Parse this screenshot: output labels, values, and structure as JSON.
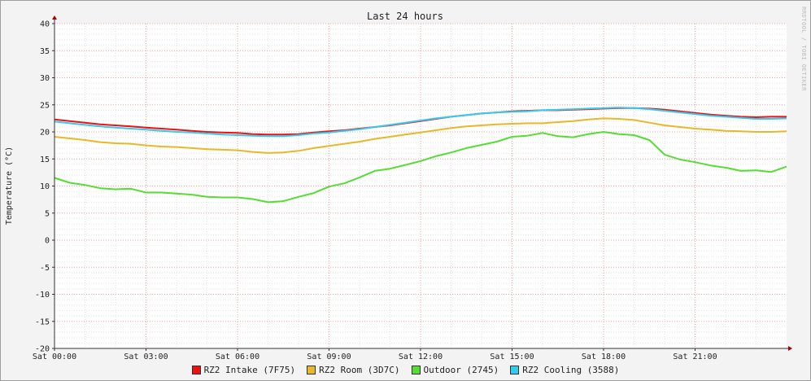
{
  "chart_data": {
    "type": "line",
    "title": "Last 24 hours",
    "ylabel": "Temperature (°C)",
    "xlabel": "",
    "watermark": "RRDTOOL / TOBI OETIKER",
    "ylim": [
      -20,
      40
    ],
    "xlim": [
      0,
      24
    ],
    "yticks": [
      40,
      35,
      30,
      25,
      20,
      15,
      10,
      5,
      0,
      -5,
      -10,
      -15,
      -20
    ],
    "xticks": [
      {
        "x": 0,
        "label": "Sat 00:00"
      },
      {
        "x": 3,
        "label": "Sat 03:00"
      },
      {
        "x": 6,
        "label": "Sat 06:00"
      },
      {
        "x": 9,
        "label": "Sat 09:00"
      },
      {
        "x": 12,
        "label": "Sat 12:00"
      },
      {
        "x": 15,
        "label": "Sat 15:00"
      },
      {
        "x": 18,
        "label": "Sat 18:00"
      },
      {
        "x": 21,
        "label": "Sat 21:00"
      }
    ],
    "grid": true,
    "legend_position": "bottom",
    "x": [
      0,
      0.5,
      1,
      1.5,
      2,
      2.5,
      3,
      3.5,
      4,
      4.5,
      5,
      5.5,
      6,
      6.5,
      7,
      7.5,
      8,
      8.5,
      9,
      9.5,
      10,
      10.5,
      11,
      11.5,
      12,
      12.5,
      13,
      13.5,
      14,
      14.5,
      15,
      15.5,
      16,
      16.5,
      17,
      17.5,
      18,
      18.5,
      19,
      19.5,
      20,
      20.5,
      21,
      21.5,
      22,
      22.5,
      23,
      23.5,
      24
    ],
    "series": [
      {
        "name": "RZ2 Intake (7F75)",
        "color": "#ee1111",
        "values": [
          22.3,
          22.0,
          21.7,
          21.4,
          21.2,
          21.0,
          20.8,
          20.6,
          20.4,
          20.2,
          20.0,
          19.9,
          19.8,
          19.6,
          19.5,
          19.5,
          19.6,
          19.9,
          20.1,
          20.3,
          20.6,
          20.9,
          21.2,
          21.6,
          22.0,
          22.4,
          22.8,
          23.1,
          23.4,
          23.6,
          23.8,
          23.9,
          24.0,
          24.0,
          24.1,
          24.2,
          24.3,
          24.4,
          24.4,
          24.3,
          24.1,
          23.8,
          23.5,
          23.2,
          23.0,
          22.8,
          22.7,
          22.8,
          22.8
        ]
      },
      {
        "name": "RZ2 Room (3D7C)",
        "color": "#e6b82a",
        "values": [
          19.1,
          18.8,
          18.5,
          18.1,
          17.9,
          17.8,
          17.5,
          17.3,
          17.2,
          17.0,
          16.8,
          16.7,
          16.6,
          16.3,
          16.1,
          16.2,
          16.5,
          17.0,
          17.4,
          17.8,
          18.2,
          18.7,
          19.1,
          19.5,
          19.9,
          20.3,
          20.7,
          21.0,
          21.2,
          21.4,
          21.5,
          21.6,
          21.6,
          21.8,
          22.0,
          22.3,
          22.5,
          22.4,
          22.2,
          21.7,
          21.2,
          20.9,
          20.6,
          20.4,
          20.2,
          20.1,
          20.0,
          20.0,
          20.1
        ]
      },
      {
        "name": "Outdoor (2745)",
        "color": "#55dd33",
        "values": [
          11.5,
          10.6,
          10.2,
          9.6,
          9.4,
          9.5,
          8.8,
          8.8,
          8.6,
          8.4,
          8.0,
          7.9,
          7.9,
          7.6,
          7.0,
          7.2,
          8.0,
          8.7,
          9.9,
          10.5,
          11.6,
          12.8,
          13.2,
          13.9,
          14.6,
          15.5,
          16.2,
          17.0,
          17.6,
          18.2,
          19.1,
          19.3,
          19.8,
          19.2,
          19.0,
          19.6,
          20.0,
          19.6,
          19.4,
          18.5,
          15.8,
          14.9,
          14.4,
          13.8,
          13.4,
          12.8,
          12.9,
          12.6,
          13.6
        ]
      },
      {
        "name": "RZ2 Cooling (3588)",
        "color": "#33ccee",
        "values": [
          21.9,
          21.6,
          21.3,
          21.0,
          20.8,
          20.6,
          20.4,
          20.2,
          20.0,
          19.9,
          19.7,
          19.5,
          19.4,
          19.3,
          19.2,
          19.2,
          19.4,
          19.7,
          19.9,
          20.2,
          20.5,
          20.9,
          21.3,
          21.7,
          22.1,
          22.5,
          22.8,
          23.1,
          23.4,
          23.6,
          23.7,
          23.8,
          24.0,
          24.1,
          24.2,
          24.3,
          24.4,
          24.5,
          24.4,
          24.2,
          23.9,
          23.6,
          23.3,
          23.0,
          22.8,
          22.6,
          22.4,
          22.4,
          22.5
        ]
      }
    ]
  }
}
